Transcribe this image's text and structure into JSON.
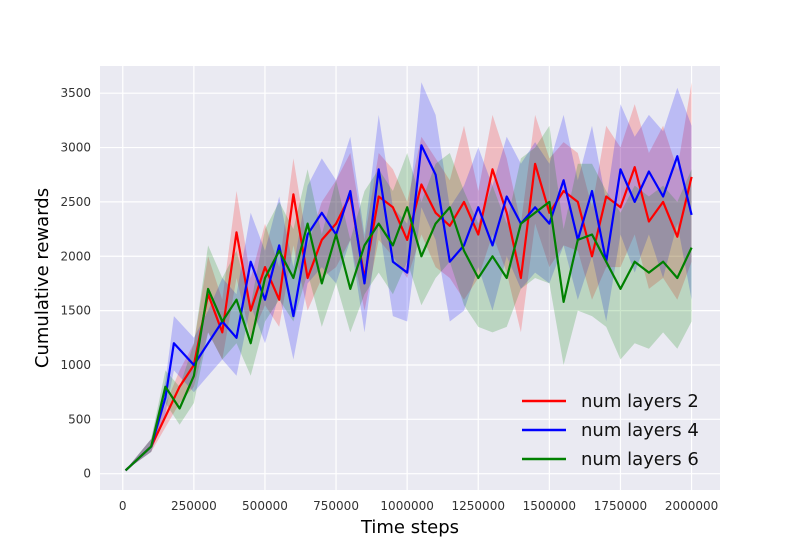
{
  "chart_data": {
    "type": "line",
    "xlabel": "Time steps",
    "ylabel": "Cumulative rewards",
    "xlim": [
      -80000,
      2100000
    ],
    "ylim": [
      -150,
      3750
    ],
    "xticks": [
      0,
      250000,
      500000,
      750000,
      1000000,
      1250000,
      1500000,
      1750000,
      2000000
    ],
    "xtick_labels": [
      "0",
      "250000",
      "500000",
      "750000",
      "1000000",
      "1250000",
      "1500000",
      "1750000",
      "2000000"
    ],
    "yticks": [
      0,
      500,
      1000,
      1500,
      2000,
      2500,
      3000,
      3500
    ],
    "ytick_labels": [
      "0",
      "500",
      "1000",
      "1500",
      "2000",
      "2500",
      "3000",
      "3500"
    ],
    "grid": true,
    "background": "#eaeaf2",
    "legend_position": "lower-right",
    "series": [
      {
        "name": "num layers 2",
        "color": "#ff0000",
        "x": [
          10000,
          100000,
          200000,
          250000,
          300000,
          350000,
          400000,
          450000,
          500000,
          550000,
          600000,
          650000,
          700000,
          750000,
          800000,
          850000,
          900000,
          950000,
          1000000,
          1050000,
          1100000,
          1150000,
          1200000,
          1250000,
          1300000,
          1350000,
          1400000,
          1450000,
          1500000,
          1550000,
          1600000,
          1650000,
          1700000,
          1750000,
          1800000,
          1850000,
          1900000,
          1950000,
          2000000
        ],
        "values": [
          30,
          250,
          800,
          1000,
          1650,
          1300,
          2220,
          1500,
          1900,
          1600,
          2570,
          1800,
          2150,
          2300,
          2560,
          1800,
          2550,
          2450,
          2150,
          2660,
          2400,
          2280,
          2500,
          2200,
          2800,
          2400,
          1800,
          2850,
          2400,
          2600,
          2500,
          2000,
          2550,
          2450,
          2820,
          2320,
          2500,
          2180,
          2730
        ],
        "lower": [
          30,
          200,
          650,
          800,
          1300,
          1050,
          1800,
          1250,
          1550,
          1350,
          2100,
          1500,
          1800,
          1900,
          2150,
          1500,
          2150,
          2000,
          1800,
          2200,
          1900,
          1800,
          1600,
          1800,
          2200,
          1850,
          1300,
          2300,
          1900,
          2100,
          2050,
          1600,
          1900,
          1900,
          2200,
          1700,
          1800,
          1600,
          1950
        ],
        "upper": [
          35,
          320,
          950,
          1200,
          2000,
          1600,
          2600,
          1800,
          2300,
          1900,
          2900,
          2100,
          2500,
          2700,
          2950,
          2150,
          2950,
          2800,
          2500,
          3100,
          2900,
          2700,
          3200,
          2600,
          3300,
          2900,
          2300,
          3300,
          2900,
          3050,
          2950,
          2450,
          3200,
          3000,
          3400,
          2950,
          3200,
          2800,
          3600
        ]
      },
      {
        "name": "num layers 4",
        "color": "#0000ff",
        "x": [
          10000,
          100000,
          150000,
          180000,
          250000,
          300000,
          350000,
          400000,
          450000,
          500000,
          550000,
          600000,
          650000,
          700000,
          750000,
          800000,
          850000,
          900000,
          950000,
          1000000,
          1050000,
          1100000,
          1150000,
          1200000,
          1250000,
          1300000,
          1350000,
          1400000,
          1450000,
          1500000,
          1550000,
          1600000,
          1650000,
          1700000,
          1750000,
          1800000,
          1850000,
          1900000,
          1950000,
          2000000
        ],
        "values": [
          30,
          250,
          700,
          1200,
          1000,
          1200,
          1400,
          1250,
          1950,
          1600,
          2100,
          1450,
          2200,
          2400,
          2200,
          2600,
          1750,
          2800,
          1950,
          1850,
          3020,
          2750,
          1950,
          2100,
          2450,
          2100,
          2550,
          2300,
          2450,
          2300,
          2700,
          2150,
          2600,
          1950,
          2800,
          2500,
          2780,
          2550,
          2920,
          2380
        ],
        "lower": [
          30,
          200,
          550,
          950,
          750,
          900,
          1050,
          900,
          1550,
          1200,
          1650,
          1050,
          1750,
          1900,
          1750,
          2150,
          1300,
          2300,
          1450,
          1400,
          2450,
          2150,
          1400,
          1500,
          1900,
          1500,
          2000,
          1700,
          1850,
          1750,
          2100,
          1600,
          2000,
          1400,
          2200,
          1850,
          2200,
          1800,
          2300,
          1600
        ],
        "upper": [
          35,
          320,
          850,
          1450,
          1250,
          1500,
          1800,
          1650,
          2400,
          2050,
          2550,
          1900,
          2650,
          2900,
          2700,
          3100,
          2200,
          3300,
          2450,
          2300,
          3600,
          3300,
          2450,
          2650,
          3000,
          2650,
          3100,
          2850,
          3050,
          2850,
          3300,
          2700,
          3200,
          2500,
          3400,
          3100,
          3300,
          3150,
          3550,
          3200
        ]
      },
      {
        "name": "num layers 6",
        "color": "#008000",
        "x": [
          10000,
          100000,
          150000,
          200000,
          250000,
          300000,
          350000,
          400000,
          450000,
          500000,
          550000,
          600000,
          650000,
          700000,
          750000,
          800000,
          850000,
          900000,
          950000,
          1000000,
          1050000,
          1100000,
          1150000,
          1200000,
          1250000,
          1300000,
          1350000,
          1400000,
          1450000,
          1500000,
          1550000,
          1600000,
          1650000,
          1700000,
          1750000,
          1800000,
          1850000,
          1900000,
          1950000,
          2000000
        ],
        "values": [
          30,
          250,
          800,
          600,
          900,
          1700,
          1400,
          1600,
          1200,
          1800,
          2050,
          1800,
          2300,
          1750,
          2200,
          1700,
          2100,
          2300,
          2100,
          2450,
          2000,
          2300,
          2450,
          2050,
          1800,
          2000,
          1800,
          2300,
          2400,
          2500,
          1580,
          2150,
          2200,
          1950,
          1700,
          1950,
          1850,
          1950,
          1800,
          2080
        ],
        "lower": [
          30,
          200,
          650,
          450,
          650,
          1300,
          1050,
          1200,
          900,
          1400,
          1600,
          1400,
          1850,
          1350,
          1750,
          1300,
          1650,
          1850,
          1650,
          1950,
          1550,
          1800,
          1950,
          1550,
          1350,
          1300,
          1350,
          1700,
          1800,
          1750,
          1000,
          1500,
          1450,
          1350,
          1050,
          1200,
          1150,
          1300,
          1150,
          1400
        ],
        "upper": [
          35,
          320,
          950,
          800,
          1200,
          2100,
          1800,
          2050,
          1550,
          2250,
          2500,
          2250,
          2800,
          2200,
          2700,
          2150,
          2600,
          2800,
          2600,
          2950,
          2500,
          2850,
          2950,
          2600,
          2300,
          2650,
          2300,
          2900,
          3000,
          3200,
          2250,
          2850,
          2850,
          2600,
          2400,
          2650,
          2550,
          2650,
          2500,
          2800
        ]
      }
    ]
  }
}
